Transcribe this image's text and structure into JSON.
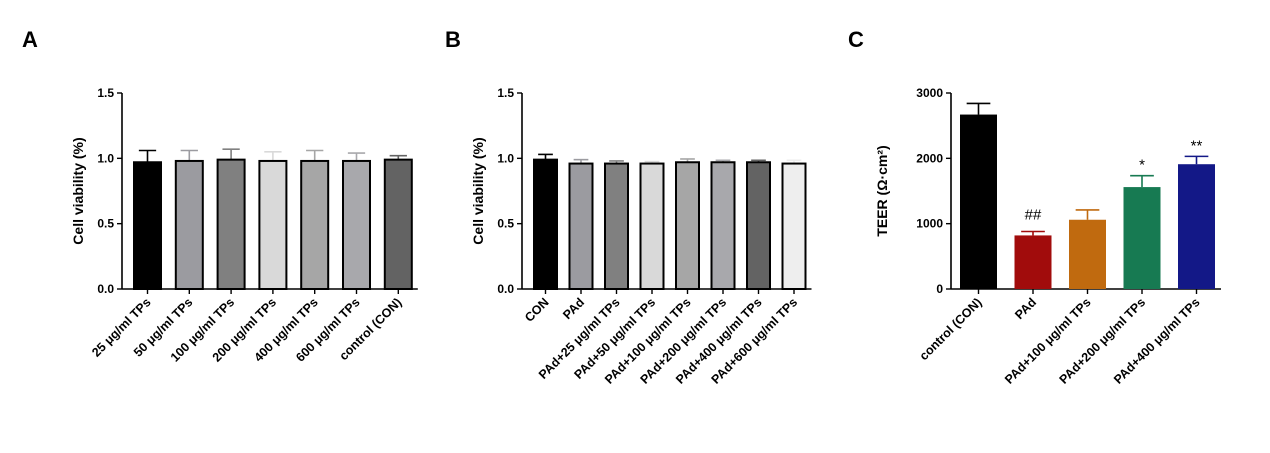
{
  "chart_data": [
    {
      "panel": "A",
      "type": "bar",
      "ylabel": "Cell viability (%)",
      "ylim": [
        0,
        1.5
      ],
      "yticks": [
        "0.0",
        "0.5",
        "1.0",
        "1.5"
      ],
      "categories": [
        "25 μg/ml TPs",
        "50 μg/ml TPs",
        "100 μg/ml TPs",
        "200 μg/ml TPs",
        "400 μg/ml TPs",
        "600 μg/ml TPs",
        "control (CON)"
      ],
      "values": [
        0.97,
        0.98,
        0.99,
        0.98,
        0.98,
        0.98,
        0.99
      ],
      "errors": [
        0.09,
        0.08,
        0.08,
        0.07,
        0.08,
        0.06,
        0.03
      ],
      "colors": [
        "#000000",
        "#9b9ba0",
        "#808080",
        "#d9d9d9",
        "#a6a6a6",
        "#a8a8ac",
        "#636363"
      ],
      "grid": false
    },
    {
      "panel": "B",
      "type": "bar",
      "ylabel": "Cell viability (%)",
      "ylim": [
        0,
        1.5
      ],
      "yticks": [
        "0.0",
        "0.5",
        "1.0",
        "1.5"
      ],
      "categories": [
        "CON",
        "PAd",
        "PAd+25 μg/ml TPs",
        "PAd+50 μg/ml TPs",
        "PAd+100 μg/ml TPs",
        "PAd+200 μg/ml TPs",
        "PAd+400 μg/ml TPs",
        "PAd+600 μg/ml TPs"
      ],
      "values": [
        0.99,
        0.96,
        0.96,
        0.96,
        0.97,
        0.97,
        0.97,
        0.96
      ],
      "errors": [
        0.04,
        0.03,
        0.02,
        0.015,
        0.025,
        0.015,
        0.015,
        0.025
      ],
      "colors": [
        "#000000",
        "#9b9ba0",
        "#808080",
        "#d9d9d9",
        "#a6a6a6",
        "#a8a8ac",
        "#636363",
        "#eeeeee"
      ],
      "grid": false
    },
    {
      "panel": "C",
      "type": "bar",
      "ylabel": "TEER (Ω·cm²)",
      "ylim": [
        0,
        3000
      ],
      "yticks": [
        "0",
        "1000",
        "2000",
        "3000"
      ],
      "categories": [
        "control (CON)",
        "PAd",
        "PAd+100 μg/ml TPs",
        "PAd+200 μg/ml TPs",
        "PAd+400 μg/ml TPs"
      ],
      "values": [
        2670,
        820,
        1060,
        1560,
        1910
      ],
      "errors": [
        170,
        60,
        150,
        175,
        120
      ],
      "colors": [
        "#000000",
        "#a10c0c",
        "#c06a0f",
        "#177a52",
        "#131887"
      ],
      "annotations": [
        "",
        "##",
        "",
        "*",
        "**"
      ],
      "grid": false
    }
  ]
}
